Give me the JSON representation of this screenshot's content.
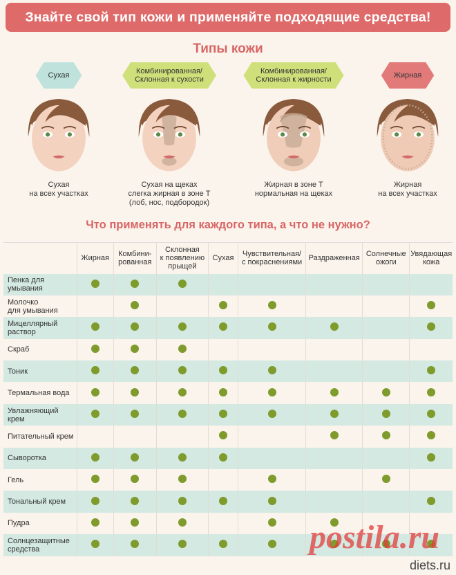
{
  "banner": "Знайте свой тип кожи и применяйте подходящие средства!",
  "subtitle": "Типы кожи",
  "types": [
    {
      "tag": "Сухая",
      "desc": "Сухая\nна всех участках",
      "color": "#bfe3dc"
    },
    {
      "tag": "Комбинированная/\nСклонная к сухости",
      "desc": "Сухая на щеках\nслегка жирная в зоне Т\n(лоб, нос, подбородок)",
      "color": "#cfe07a"
    },
    {
      "tag": "Комбинированная/\nСклонная к жирности",
      "desc": "Жирная в зоне Т\nнормальная на щеках",
      "color": "#cfe07a"
    },
    {
      "tag": "Жирная",
      "desc": "Жирная\nна всех участках",
      "color": "#e27a7a"
    }
  ],
  "question": "Что применять для каждого типа, а что не нужно?",
  "table": {
    "columns": [
      "Жирная",
      "Комбини-\nрованная",
      "Склонная\nк появлению\nпрыщей",
      "Сухая",
      "Чувствительная/\nс покраснениями",
      "Раздраженная",
      "Солнечные\nожоги",
      "Увядающая\nкожа"
    ],
    "rows": [
      {
        "label": "Пенка для\nумывания",
        "marks": [
          1,
          1,
          1,
          0,
          0,
          0,
          0,
          0
        ]
      },
      {
        "label": "Молочко\nдля умывания",
        "marks": [
          0,
          1,
          0,
          1,
          1,
          0,
          0,
          1
        ]
      },
      {
        "label": "Мицеллярный\nраствор",
        "marks": [
          1,
          1,
          1,
          1,
          1,
          1,
          0,
          1
        ]
      },
      {
        "label": "Скраб",
        "marks": [
          1,
          1,
          1,
          0,
          0,
          0,
          0,
          0
        ]
      },
      {
        "label": "Тоник",
        "marks": [
          1,
          1,
          1,
          1,
          1,
          0,
          0,
          1
        ]
      },
      {
        "label": "Термальная вода",
        "marks": [
          1,
          1,
          1,
          1,
          1,
          1,
          1,
          1
        ]
      },
      {
        "label": "Увлажняющий\nкрем",
        "marks": [
          1,
          1,
          1,
          1,
          1,
          1,
          1,
          1
        ]
      },
      {
        "label": "Питательный крем",
        "marks": [
          0,
          0,
          0,
          1,
          0,
          1,
          1,
          1
        ]
      },
      {
        "label": "Сыворотка",
        "marks": [
          1,
          1,
          1,
          1,
          0,
          0,
          0,
          1
        ]
      },
      {
        "label": "Гель",
        "marks": [
          1,
          1,
          1,
          0,
          1,
          0,
          1,
          0
        ]
      },
      {
        "label": "Тональный крем",
        "marks": [
          1,
          1,
          1,
          1,
          1,
          0,
          0,
          1
        ]
      },
      {
        "label": "Пудра",
        "marks": [
          1,
          1,
          1,
          0,
          1,
          1,
          0,
          0
        ]
      },
      {
        "label": "Солнцезащитные\nсредства",
        "marks": [
          1,
          1,
          1,
          1,
          1,
          1,
          1,
          1
        ]
      }
    ],
    "mark_color": "#7e9b2c"
  },
  "watermark": "postila.ru",
  "logo": "diets.ru"
}
